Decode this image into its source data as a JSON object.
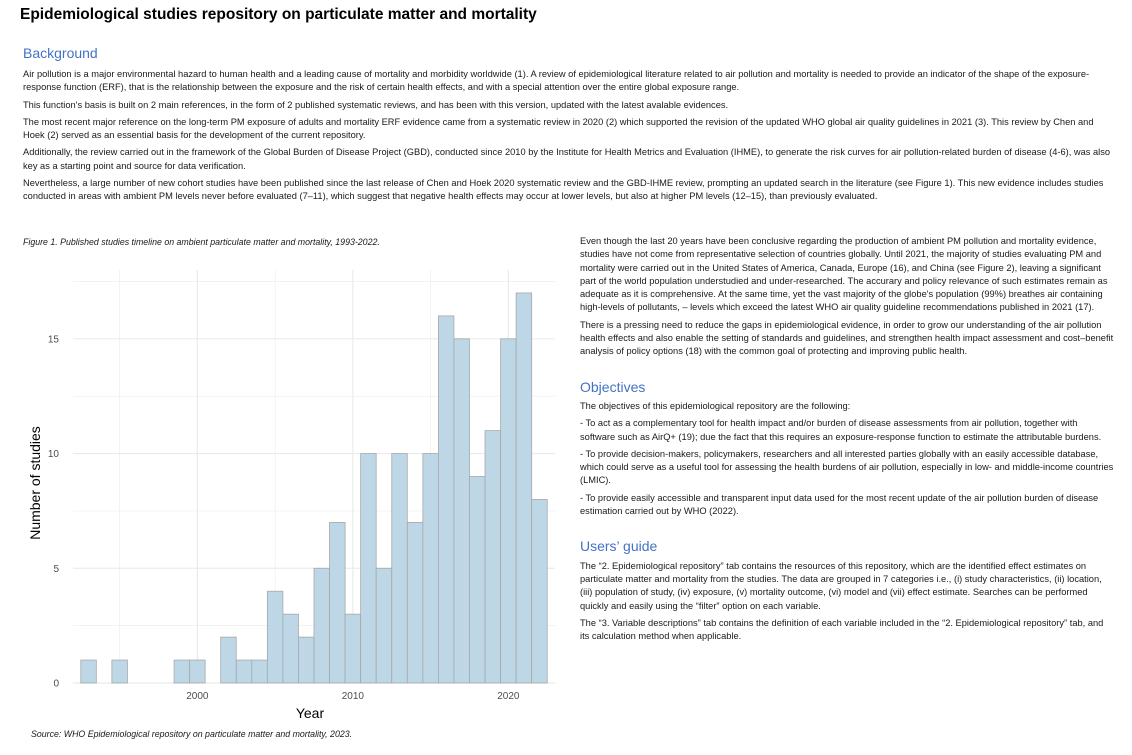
{
  "title": "Epidemiological studies repository on particulate matter and mortality",
  "background": {
    "heading": "Background",
    "paragraphs": [
      "Air pollution is a major environmental hazard to human health and a leading cause of mortality and morbidity worldwide (1). A review of epidemiological literature related to air pollution and mortality is needed to provide an indicator of the shape of the exposure-response function (ERF), that is the relationship between the exposure and the risk of certain health effects,  and with a special attention over the entire global exposure range.",
      "This function's basis is built on 2 main references, in the form of 2 published systematic reviews, and has been with this version, updated with the latest avalable evidences.",
      "The most recent major reference on the long-term PM exposure of adults and mortality ERF evidence came from a systematic review in 2020 (2) which supported the revision of the updated WHO global air quality guidelines in 2021 (3). This review by Chen and Hoek (2) served as an essential basis for the development of the current repository.",
      "Additionally, the review carried out in the framework of the Global Burden of Disease Project (GBD), conducted since 2010 by the Institute for Health Metrics and Evaluation (IHME), to generate the risk curves for air pollution-related burden of disease (4-6), was also key as a starting point and source for data verification.",
      "Nevertheless, a large number of new cohort studies have been published since the last release of Chen and Hoek 2020 systematic review and the GBD-IHME review, prompting an updated search in the literature (see Figure 1). This new evidence includes studies conducted in areas with ambient PM levels never before evaluated (7–11), which suggest that negative health effects may occur at  lower levels, but also at higher PM levels (12–15), than previously evaluated."
    ]
  },
  "figure": {
    "caption": "Figure 1. Published studies timeline on ambient particulate matter and mortality, 1993-2022.",
    "source": "Source: WHO Epidemiological repository on particulate matter and mortality, 2023."
  },
  "chart_data": {
    "type": "bar",
    "x": [
      1993,
      1995,
      1999,
      2000,
      2002,
      2003,
      2004,
      2005,
      2006,
      2007,
      2008,
      2009,
      2010,
      2011,
      2012,
      2013,
      2014,
      2015,
      2016,
      2017,
      2018,
      2019,
      2020,
      2021,
      2022
    ],
    "values": [
      1,
      1,
      1,
      1,
      2,
      1,
      1,
      4,
      3,
      2,
      5,
      7,
      3,
      10,
      5,
      10,
      7,
      10,
      16,
      15,
      9,
      11,
      15,
      17,
      8
    ],
    "xlabel": "Year",
    "ylabel": "Number of studies",
    "xticks": [
      2000,
      2010,
      2020
    ],
    "yticks": [
      0,
      5,
      10,
      15
    ],
    "xlim": [
      1992,
      2023
    ],
    "ylim": [
      0,
      18
    ],
    "grid": true,
    "colors": {
      "bar_fill": "#bdd7e7",
      "bar_stroke": "#a8a8a8",
      "grid": "#ebebeb",
      "tick_text": "#4d4d4d"
    }
  },
  "right": {
    "paragraphs1": [
      "Even though the last 20 years have been conclusive regarding the production of ambient PM pollution and mortality evidence, studies have not come from representative selection of countries globally. Until 2021, the majority of studies evaluating PM and mortality were carried out in the United States of America, Canada, Europe (16), and China (see Figure 2), leaving a significant part of the world population understudied and under-researched. The accurary and policy relevance of such estimates remain as adequate as it is comprehensive. At the same time, yet the vast majority of the globe's population (99%) breathes air containing high-levels of pollutants,  – levels which exceed the latest WHO air quality guideline recommendations published in 2021 (17).",
      "There is a pressing need to reduce the gaps in epidemiological evidence, in order to grow our understanding of the air pollution health effects and also enable the setting of standards and guidelines, and strengthen health impact assessment and cost–benefit analysis of policy options (18) with the common goal of protecting and improving public health."
    ],
    "objectives_heading": "Objectives",
    "objectives_paragraphs": [
      "The objectives of this epidemiological repository are the following:",
      "-  To act as a complementary tool for health impact and/or burden of disease assessments from air pollution, together with software such as AirQ+ (19); due the fact that this requires an exposure-response function to estimate the attributable burdens.",
      "- To provide decision-makers, policymakers, researchers and all interested parties globally with an easily accessible database, which could serve as a useful tool for assessing the health burdens of air pollution, especially in low- and middle-income countries (LMIC).",
      "-  To provide easily accessible and transparent input data used for the most recent update of the air pollution burden of disease estimation carried out by WHO (2022)."
    ],
    "users_heading": "Users’ guide",
    "users_paragraphs": [
      "The “2. Epidemiological repository” tab contains the resources of this repository, which are the identified effect estimates on particulate matter and mortality from the studies. The data are grouped in 7 categories i.e., (i) study characteristics, (ii) location, (iii) population of study, (iv) exposure, (v) mortality outcome, (vi) model and (vii) effect estimate. Searches can be performed quickly and easily using the “filter” option on each variable.",
      "The “3. Variable descriptions” tab contains the definition of each variable included in the “2. Epidemiological repository” tab, and its calculation method when applicable."
    ]
  }
}
